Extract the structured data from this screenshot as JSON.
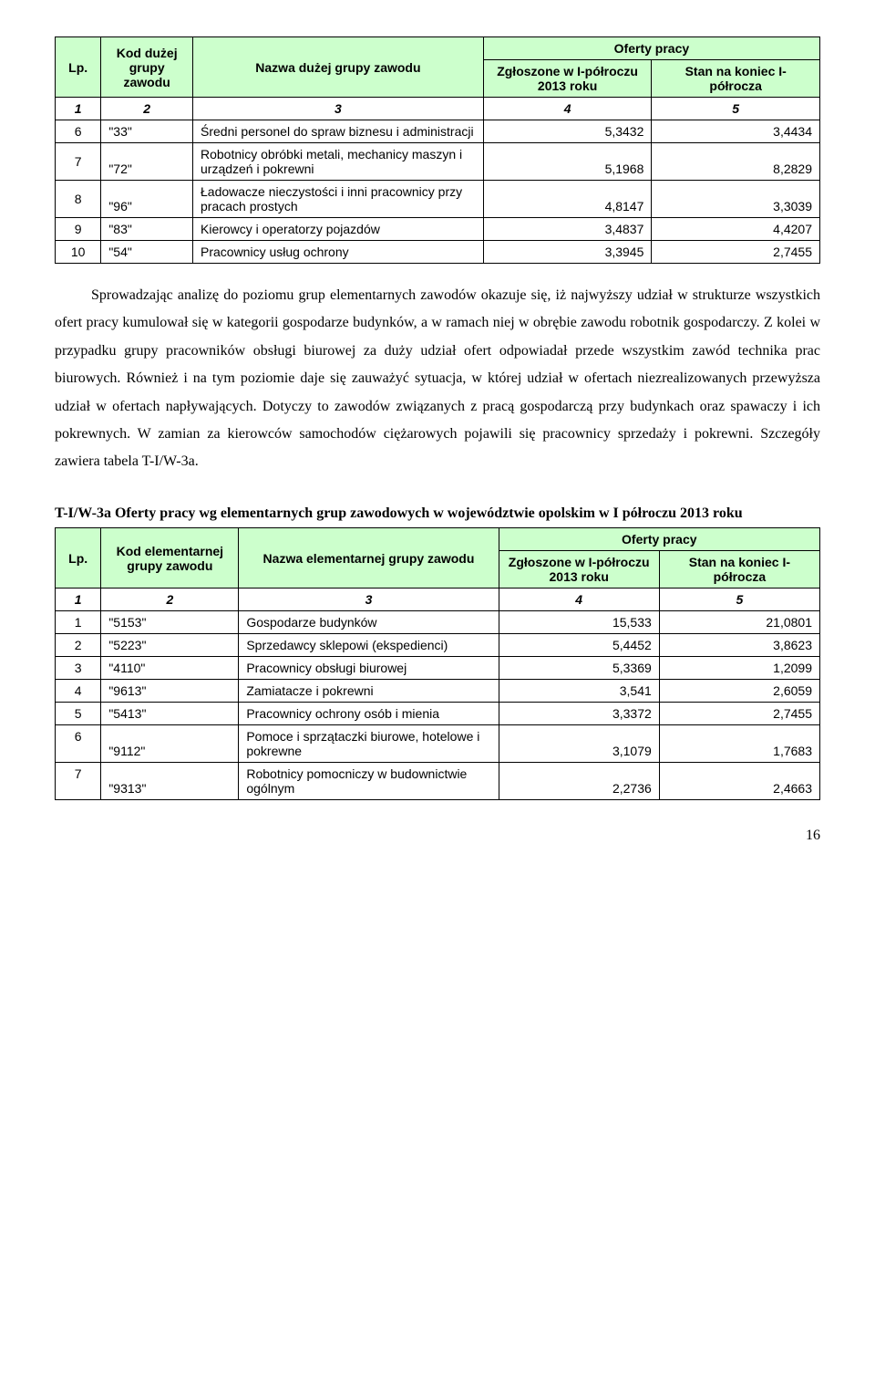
{
  "table1": {
    "headers": {
      "lp": "Lp.",
      "kod": "Kod dużej grupy zawodu",
      "nazwa": "Nazwa dużej grupy zawodu",
      "oferty": "Oferty pracy",
      "zglosz": "Zgłoszone w I-półroczu 2013 roku",
      "stan": "Stan na koniec I-półrocza"
    },
    "numhdr": [
      "1",
      "2",
      "3",
      "4",
      "5"
    ],
    "rows": [
      {
        "lp": "6",
        "kod": "\"33\"",
        "nazwa": "Średni personel do spraw  biznesu i administracji",
        "v1": "5,3432",
        "v2": "3,4434"
      },
      {
        "lp": "7",
        "kod": "\"72\"",
        "nazwa": "Robotnicy obróbki metali, mechanicy maszyn i urządzeń i pokrewni",
        "v1": "5,1968",
        "v2": "8,2829"
      },
      {
        "lp": "8",
        "kod": "\"96\"",
        "nazwa": "Ładowacze nieczystości i inni pracownicy przy pracach prostych",
        "v1": "4,8147",
        "v2": "3,3039"
      },
      {
        "lp": "9",
        "kod": "\"83\"",
        "nazwa": "Kierowcy i operatorzy pojazdów",
        "v1": "3,4837",
        "v2": "4,4207"
      },
      {
        "lp": "10",
        "kod": "\"54\"",
        "nazwa": "Pracownicy usług ochrony",
        "v1": "3,3945",
        "v2": "2,7455"
      }
    ],
    "col_widths": [
      "6%",
      "12%",
      "38%",
      "22%",
      "22%"
    ]
  },
  "paragraph": "Sprowadzając analizę do poziomu grup elementarnych zawodów okazuje się, iż najwyższy udział w strukturze wszystkich ofert pracy kumulował się w kategorii gospodarze budynków, a w ramach niej w obrębie zawodu robotnik gospodarczy. Z kolei w przypadku grupy pracowników obsługi biurowej za duży udział ofert odpowiadał przede wszystkim zawód technika prac biurowych. Również i na tym poziomie daje się zauważyć sytuacja, w której udział w ofertach niezrealizowanych przewyższa udział w ofertach napływających. Dotyczy to zawodów związanych z pracą gospodarczą przy budynkach oraz spawaczy i ich pokrewnych. W zamian za kierowców samochodów ciężarowych pojawili się pracownicy sprzedaży i pokrewni. Szczegóły zawiera tabela T-I/W-3a.",
  "caption2": "T-I/W-3a Oferty pracy wg elementarnych grup zawodowych w województwie opolskim w I półroczu 2013 roku",
  "table2": {
    "headers": {
      "lp": "Lp.",
      "kod": "Kod elementarnej grupy zawodu",
      "nazwa": "Nazwa elementarnej grupy zawodu",
      "oferty": "Oferty pracy",
      "zglosz": "Zgłoszone w I-półroczu 2013 roku",
      "stan": "Stan na koniec I-półrocza"
    },
    "numhdr": [
      "1",
      "2",
      "3",
      "4",
      "5"
    ],
    "rows": [
      {
        "lp": "1",
        "kod": "\"5153\"",
        "nazwa": "Gospodarze budynków",
        "v1": "15,533",
        "v2": "21,0801"
      },
      {
        "lp": "2",
        "kod": "\"5223\"",
        "nazwa": "Sprzedawcy sklepowi (ekspedienci)",
        "v1": "5,4452",
        "v2": "3,8623"
      },
      {
        "lp": "3",
        "kod": "\"4110\"",
        "nazwa": "Pracownicy obsługi biurowej",
        "v1": "5,3369",
        "v2": "1,2099"
      },
      {
        "lp": "4",
        "kod": "\"9613\"",
        "nazwa": "Zamiatacze i pokrewni",
        "v1": "3,541",
        "v2": "2,6059"
      },
      {
        "lp": "5",
        "kod": "\"5413\"",
        "nazwa": "Pracownicy ochrony osób i mienia",
        "v1": "3,3372",
        "v2": "2,7455"
      },
      {
        "lp": "6",
        "kod": "\"9112\"",
        "nazwa": "Pomoce i sprzątaczki biurowe, hotelowe i pokrewne",
        "v1": "3,1079",
        "v2": "1,7683"
      },
      {
        "lp": "7",
        "kod": "\"9313\"",
        "nazwa": "Robotnicy pomocniczy w budownictwie ogólnym",
        "v1": "2,2736",
        "v2": "2,4663"
      }
    ],
    "col_widths": [
      "6%",
      "18%",
      "34%",
      "21%",
      "21%"
    ]
  },
  "pagenum": "16",
  "colors": {
    "header_bg": "#ccffcc",
    "border": "#000000",
    "text": "#000000",
    "bg": "#ffffff"
  }
}
